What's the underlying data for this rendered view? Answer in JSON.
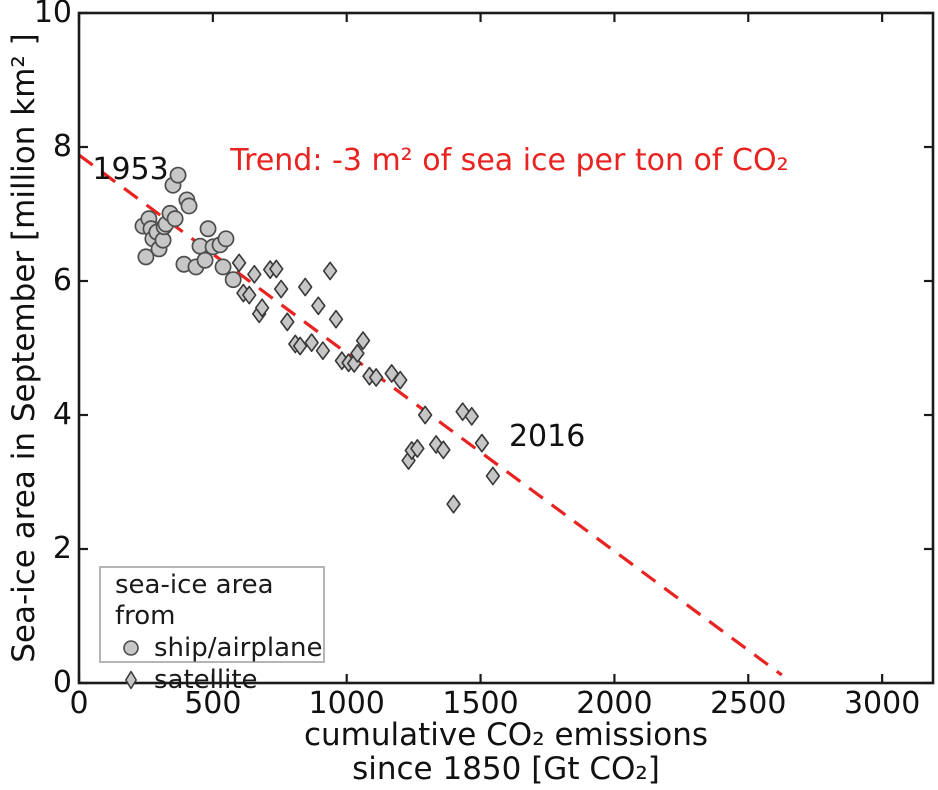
{
  "figure": {
    "background": "#ffffff"
  },
  "chart_data": {
    "type": "scatter",
    "title": "",
    "xlabel_line1": "cumulative CO₂ emissions",
    "xlabel_line2": "since 1850 [Gt CO₂]",
    "ylabel": "Sea-ice area in September [million km² ]",
    "xlim": [
      0,
      3190
    ],
    "ylim": [
      0,
      10
    ],
    "xticks": [
      0,
      500,
      1000,
      1500,
      2000,
      2500,
      3000
    ],
    "yticks": [
      0,
      2,
      4,
      6,
      8,
      10
    ],
    "grid": false,
    "axis_color": "#1a1a1a",
    "tick_direction": "in",
    "series": [
      {
        "name": "ship/airplane",
        "marker": "circle",
        "fill": "#c7c7c7",
        "stroke": "#4d4d4d",
        "points": [
          [
            239,
            6.82
          ],
          [
            250,
            6.36
          ],
          [
            261,
            6.93
          ],
          [
            269,
            6.78
          ],
          [
            276,
            6.63
          ],
          [
            291,
            6.73
          ],
          [
            299,
            6.48
          ],
          [
            314,
            6.61
          ],
          [
            318,
            6.81
          ],
          [
            325,
            6.85
          ],
          [
            340,
            7.01
          ],
          [
            351,
            7.43
          ],
          [
            359,
            6.93
          ],
          [
            370,
            7.58
          ],
          [
            392,
            6.25
          ],
          [
            403,
            7.21
          ],
          [
            411,
            7.12
          ],
          [
            437,
            6.21
          ],
          [
            452,
            6.52
          ],
          [
            471,
            6.31
          ],
          [
            482,
            6.78
          ],
          [
            501,
            6.51
          ],
          [
            527,
            6.54
          ],
          [
            538,
            6.21
          ],
          [
            549,
            6.63
          ],
          [
            576,
            6.02
          ]
        ]
      },
      {
        "name": "satellite",
        "marker": "diamond",
        "fill": "#c6c6c6",
        "stroke": "#383838",
        "points": [
          [
            598,
            6.27
          ],
          [
            614,
            5.82
          ],
          [
            636,
            5.79
          ],
          [
            655,
            6.1
          ],
          [
            673,
            5.51
          ],
          [
            684,
            5.6
          ],
          [
            714,
            6.17
          ],
          [
            737,
            6.18
          ],
          [
            755,
            5.88
          ],
          [
            778,
            5.39
          ],
          [
            808,
            5.06
          ],
          [
            826,
            5.03
          ],
          [
            845,
            5.91
          ],
          [
            869,
            5.08
          ],
          [
            894,
            5.63
          ],
          [
            911,
            4.96
          ],
          [
            938,
            6.15
          ],
          [
            960,
            5.43
          ],
          [
            982,
            4.81
          ],
          [
            1007,
            4.78
          ],
          [
            1028,
            4.77
          ],
          [
            1040,
            4.92
          ],
          [
            1061,
            5.11
          ],
          [
            1085,
            4.58
          ],
          [
            1110,
            4.56
          ],
          [
            1168,
            4.62
          ],
          [
            1200,
            4.52
          ],
          [
            1231,
            3.32
          ],
          [
            1243,
            3.47
          ],
          [
            1264,
            3.5
          ],
          [
            1293,
            4.0
          ],
          [
            1334,
            3.56
          ],
          [
            1361,
            3.48
          ],
          [
            1399,
            2.67
          ],
          [
            1433,
            4.05
          ],
          [
            1467,
            3.98
          ],
          [
            1505,
            3.58
          ],
          [
            1546,
            3.09
          ]
        ]
      }
    ],
    "trendline": {
      "color": "#e82320",
      "style": "dashed",
      "x1": 0,
      "y1": 7.88,
      "x2": 2625,
      "y2": 0.12,
      "slope_note": "-3 m² per ton CO₂"
    },
    "annotations": [
      {
        "name": "annotation-1953",
        "text": "1953",
        "x": 50,
        "y": 7.66,
        "color": "#111111"
      },
      {
        "name": "annotation-2016",
        "text": "2016",
        "x": 1606,
        "y": 3.67,
        "color": "#111111"
      },
      {
        "name": "annotation-trend",
        "text": "Trend: -3 m² of sea ice per ton of CO₂",
        "x": 565,
        "y": 7.79,
        "color": "#e82320"
      }
    ]
  },
  "legend": {
    "title": "sea-ice area from",
    "entries": [
      {
        "label": "ship/airplane",
        "marker": "circle"
      },
      {
        "label": "satellite",
        "marker": "diamond"
      }
    ]
  }
}
